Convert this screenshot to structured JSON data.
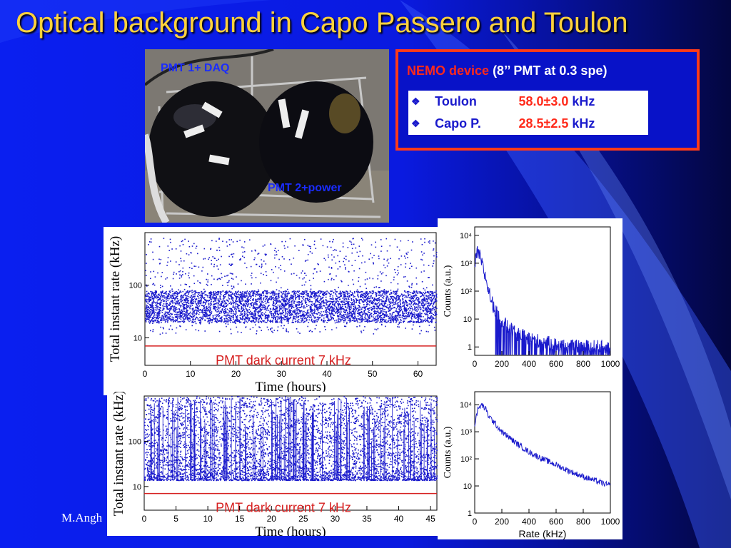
{
  "slide": {
    "title": "Optical background in Capo Passero and Toulon",
    "footer": "M.Angh"
  },
  "photo": {
    "label_top": "PMT 1+ DAQ",
    "label_bottom": "PMT 2+power"
  },
  "nemo": {
    "device_label": "NEMO device",
    "spec": "(8’’ PMT at 0.3 spe)",
    "rows": [
      {
        "bullet": "❖",
        "site": "Toulon",
        "value": "58.0±3.0",
        "unit": "kHz"
      },
      {
        "bullet": "❖",
        "site": "Capo P.",
        "value": "28.5±2.5",
        "unit": "kHz"
      }
    ]
  },
  "colors": {
    "title": "#ffd23c",
    "accent_red": "#ff2a1a",
    "data_blue": "#1a1acc",
    "background": "#0a1ff0"
  },
  "chart_data": [
    {
      "type": "scatter",
      "panel": "top-left",
      "xlabel": "Time (hours)",
      "ylabel": "Total instant rate (kHz)",
      "xticks": [
        "0",
        "10",
        "20",
        "30",
        "40",
        "50",
        "60"
      ],
      "yticks": [
        "10",
        "100"
      ],
      "xlim": [
        0,
        64
      ],
      "ylim": [
        3,
        1000
      ],
      "yscale": "log",
      "annotation": "PMT dark current 7 kHz",
      "reference_line": {
        "y": 7
      },
      "band": {
        "x": [
          0,
          64
        ],
        "y_center": 40,
        "y_low": 20,
        "y_high": 80
      }
    },
    {
      "type": "line",
      "panel": "top-right",
      "xlabel": "",
      "ylabel": "Counts (a.u.)",
      "xticks": [
        "0",
        "200",
        "400",
        "600",
        "800",
        "1000"
      ],
      "yticks": [
        "1",
        "10",
        "10²",
        "10³",
        "10⁴"
      ],
      "xlim": [
        0,
        1000
      ],
      "ylim": [
        0.5,
        20000
      ],
      "yscale": "log",
      "points": [
        [
          0,
          800
        ],
        [
          20,
          2500
        ],
        [
          40,
          1600
        ],
        [
          60,
          700
        ],
        [
          80,
          300
        ],
        [
          100,
          120
        ],
        [
          120,
          50
        ],
        [
          150,
          20
        ],
        [
          200,
          8
        ],
        [
          250,
          5
        ],
        [
          300,
          3
        ],
        [
          400,
          2
        ],
        [
          500,
          1.5
        ],
        [
          600,
          1.2
        ],
        [
          700,
          1
        ],
        [
          800,
          1
        ],
        [
          900,
          1
        ],
        [
          1000,
          1
        ]
      ]
    },
    {
      "type": "scatter",
      "panel": "bottom-left",
      "xlabel": "Time (hours)",
      "ylabel": "Total instant rate (kHz)",
      "xticks": [
        "0",
        "5",
        "10",
        "15",
        "20",
        "25",
        "30",
        "35",
        "40",
        "45"
      ],
      "yticks": [
        "10",
        "100"
      ],
      "xlim": [
        0,
        46
      ],
      "ylim": [
        3,
        1000
      ],
      "yscale": "log",
      "annotation": "PMT dark current 7 kHz",
      "reference_line": {
        "y": 7
      },
      "band": {
        "x": [
          0,
          46
        ],
        "y_center": 30,
        "y_low": 14,
        "y_high": 1000
      }
    },
    {
      "type": "line",
      "panel": "bottom-right",
      "xlabel": "Rate (kHz)",
      "ylabel": "Counts (a.u.)",
      "xticks": [
        "0",
        "200",
        "400",
        "600",
        "800",
        "1000"
      ],
      "yticks": [
        "1",
        "10",
        "10²",
        "10³",
        "10⁴"
      ],
      "xlim": [
        0,
        1000
      ],
      "ylim": [
        1,
        30000
      ],
      "yscale": "log",
      "points": [
        [
          0,
          2000
        ],
        [
          20,
          6000
        ],
        [
          50,
          10000
        ],
        [
          80,
          7000
        ],
        [
          100,
          4000
        ],
        [
          150,
          2000
        ],
        [
          200,
          1000
        ],
        [
          300,
          400
        ],
        [
          400,
          180
        ],
        [
          500,
          100
        ],
        [
          600,
          60
        ],
        [
          700,
          35
        ],
        [
          800,
          22
        ],
        [
          900,
          15
        ],
        [
          1000,
          10
        ]
      ]
    }
  ]
}
